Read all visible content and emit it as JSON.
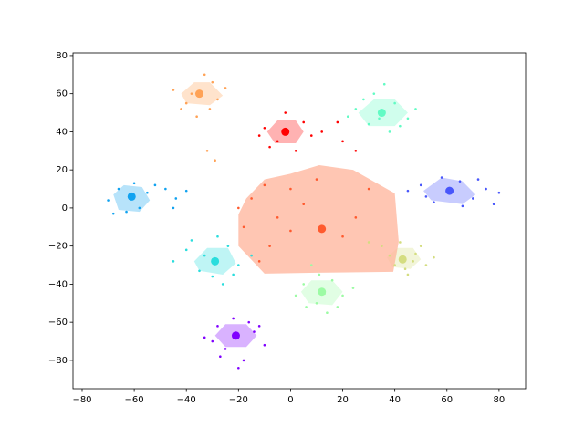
{
  "chart_data": {
    "type": "scatter",
    "xlim": [
      -83.5,
      90.2
    ],
    "ylim": [
      -94.9,
      81.4
    ],
    "xticks": [
      {
        "value": -80,
        "label": "−80"
      },
      {
        "value": -60,
        "label": "−60"
      },
      {
        "value": -40,
        "label": "−40"
      },
      {
        "value": -20,
        "label": "−20"
      },
      0,
      20,
      40,
      60,
      80
    ],
    "yticks": [
      {
        "value": -80,
        "label": "−80"
      },
      {
        "value": -60,
        "label": "−60"
      },
      {
        "value": -40,
        "label": "−40"
      },
      {
        "value": -20,
        "label": "−20"
      },
      0,
      20,
      40,
      60,
      80
    ],
    "series": [
      {
        "color": "#8000ff",
        "center": [
          -21,
          -67
        ],
        "x": [
          -28,
          -25,
          -18,
          -14,
          -30,
          -22,
          -10,
          -33,
          -20,
          -16,
          -27,
          -12
        ],
        "y": [
          -62,
          -74,
          -80,
          -65,
          -70,
          -58,
          -72,
          -68,
          -84,
          -60,
          -78,
          -62
        ],
        "hull_x": [
          -29,
          -25,
          -17,
          -13,
          -17,
          -25
        ],
        "hull_y": [
          -67,
          -61,
          -61,
          -67,
          -73,
          -73
        ]
      },
      {
        "color": "#4856fb",
        "center": [
          61,
          9
        ],
        "x": [
          50,
          55,
          65,
          70,
          75,
          80,
          58,
          45,
          66,
          72,
          52,
          78
        ],
        "y": [
          12,
          3,
          14,
          5,
          10,
          8,
          16,
          9,
          1,
          15,
          6,
          2
        ],
        "hull_x": [
          51,
          58,
          66,
          71,
          66,
          54
        ],
        "hull_y": [
          9,
          16,
          14,
          7,
          2,
          4
        ]
      },
      {
        "color": "#10a2f0",
        "center": [
          -61,
          6
        ],
        "x": [
          -70,
          -66,
          -58,
          -55,
          -63,
          -48,
          -44,
          -40,
          -52,
          -68,
          -60,
          -45
        ],
        "y": [
          4,
          10,
          0,
          8,
          -2,
          10,
          5,
          9,
          12,
          -3,
          13,
          0
        ],
        "hull_x": [
          -68,
          -64,
          -57,
          -54,
          -58,
          -66
        ],
        "hull_y": [
          7,
          12,
          11,
          4,
          -2,
          -1
        ]
      },
      {
        "color": "#2adddd",
        "center": [
          -29,
          -28
        ],
        "x": [
          -40,
          -35,
          -24,
          -20,
          -30,
          -45,
          -28,
          -15,
          -38,
          -22,
          -33,
          -26
        ],
        "y": [
          -22,
          -33,
          -20,
          -30,
          -36,
          -28,
          -15,
          -25,
          -17,
          -35,
          -25,
          -40
        ],
        "hull_x": [
          -37,
          -32,
          -24,
          -21,
          -26,
          -35
        ],
        "hull_y": [
          -28,
          -21,
          -21,
          -29,
          -35,
          -33
        ]
      },
      {
        "color": "#62fbc4",
        "center": [
          35,
          50
        ],
        "x": [
          25,
          30,
          40,
          45,
          32,
          38,
          28,
          48,
          36,
          22,
          42,
          34
        ],
        "y": [
          52,
          44,
          55,
          47,
          60,
          40,
          57,
          52,
          65,
          48,
          43,
          47
        ],
        "hull_x": [
          26,
          32,
          40,
          45,
          40,
          30
        ],
        "hull_y": [
          50,
          57,
          57,
          50,
          43,
          43
        ]
      },
      {
        "color": "#9cfba4",
        "center": [
          12,
          -44
        ],
        "x": [
          5,
          10,
          16,
          20,
          8,
          14,
          2,
          18,
          11,
          24,
          6,
          13
        ],
        "y": [
          -40,
          -50,
          -38,
          -46,
          -30,
          -55,
          -46,
          -52,
          -35,
          -42,
          -52,
          -45
        ],
        "hull_x": [
          4,
          8,
          16,
          20,
          16,
          7
        ],
        "hull_y": [
          -44,
          -38,
          -38,
          -44,
          -51,
          -50
        ]
      },
      {
        "color": "#d4dd80",
        "center": [
          43,
          -27
        ],
        "x": [
          35,
          40,
          48,
          52,
          45,
          38,
          30,
          50,
          44,
          55,
          42,
          47
        ],
        "y": [
          -20,
          -30,
          -24,
          -30,
          -35,
          -25,
          -18,
          -20,
          -32,
          -26,
          -18,
          -28
        ],
        "hull_x": [
          37,
          41,
          47,
          50,
          46,
          39
        ],
        "hull_y": [
          -26,
          -21,
          -21,
          -27,
          -32,
          -31
        ]
      },
      {
        "color": "#ffa256",
        "center": [
          -35,
          60
        ],
        "x": [
          -45,
          -40,
          -30,
          -28,
          -36,
          -42,
          -33,
          -25,
          -38,
          -31,
          -32,
          -29
        ],
        "y": [
          62,
          55,
          66,
          57,
          48,
          52,
          70,
          63,
          60,
          52,
          30,
          25
        ],
        "hull_x": [
          -42,
          -37,
          -31,
          -26,
          -31,
          -40
        ],
        "hull_y": [
          60,
          66,
          66,
          59,
          54,
          55
        ]
      },
      {
        "color": "#ff5a2e",
        "hull_color": "#ffb399",
        "center": [
          12,
          -11
        ],
        "x": [
          -15,
          -10,
          -5,
          0,
          5,
          -18,
          -8,
          10,
          25,
          30,
          -12,
          20,
          0,
          -20
        ],
        "y": [
          5,
          12,
          -5,
          10,
          2,
          -10,
          -20,
          15,
          -5,
          10,
          -28,
          -15,
          -12,
          0
        ],
        "hull_x": [
          -20,
          -17,
          -10,
          0,
          11,
          24,
          40,
          41.5,
          39.4,
          10,
          -10,
          -20
        ],
        "hull_y": [
          -3.4,
          5,
          15,
          18,
          22.5,
          20,
          7.7,
          -17.7,
          -33.5,
          -34,
          -34.5,
          -20
        ]
      },
      {
        "color": "#ff0000",
        "center": [
          -2,
          40
        ],
        "x": [
          -10,
          -5,
          5,
          8,
          -2,
          -8,
          12,
          20,
          2,
          18,
          -12,
          25
        ],
        "y": [
          42,
          35,
          45,
          38,
          50,
          32,
          40,
          35,
          30,
          45,
          38,
          30
        ],
        "hull_x": [
          -9,
          -5,
          2,
          5,
          2,
          -6
        ],
        "hull_y": [
          40,
          46,
          46,
          40,
          34,
          34
        ]
      }
    ]
  }
}
